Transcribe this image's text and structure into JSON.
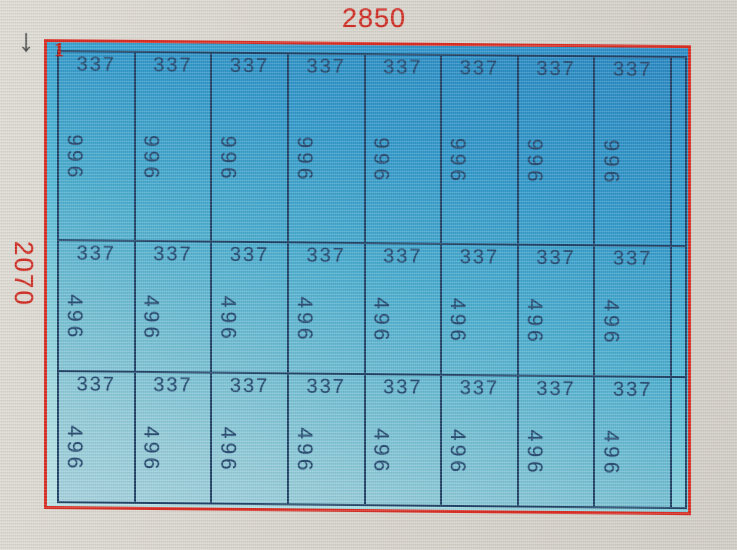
{
  "drawing": {
    "top_dimension": "2850",
    "left_dimension": "2070",
    "sheet_number": "1",
    "grid": {
      "rows": [
        {
          "cells": [
            {
              "width": "337",
              "height": "996"
            },
            {
              "width": "337",
              "height": "996"
            },
            {
              "width": "337",
              "height": "996"
            },
            {
              "width": "337",
              "height": "996"
            },
            {
              "width": "337",
              "height": "996"
            },
            {
              "width": "337",
              "height": "996"
            },
            {
              "width": "337",
              "height": "996"
            },
            {
              "width": "337",
              "height": "996"
            }
          ]
        },
        {
          "cells": [
            {
              "width": "337",
              "height": "496"
            },
            {
              "width": "337",
              "height": "496"
            },
            {
              "width": "337",
              "height": "496"
            },
            {
              "width": "337",
              "height": "496"
            },
            {
              "width": "337",
              "height": "496"
            },
            {
              "width": "337",
              "height": "496"
            },
            {
              "width": "337",
              "height": "496"
            },
            {
              "width": "337",
              "height": "496"
            }
          ]
        },
        {
          "cells": [
            {
              "width": "337",
              "height": "496"
            },
            {
              "width": "337",
              "height": "496"
            },
            {
              "width": "337",
              "height": "496"
            },
            {
              "width": "337",
              "height": "496"
            },
            {
              "width": "337",
              "height": "496"
            },
            {
              "width": "337",
              "height": "496"
            },
            {
              "width": "337",
              "height": "496"
            },
            {
              "width": "337",
              "height": "496"
            }
          ]
        }
      ]
    },
    "colors": {
      "outline_red": "#d8291f",
      "dimension_text": "#cf2a21",
      "grid_line": "#1d3e63",
      "label_text": "#244970",
      "fill_dark": "#2a8cc7",
      "fill_light": "#bce4e7"
    }
  },
  "icons": {
    "down_arrow": "↓"
  }
}
